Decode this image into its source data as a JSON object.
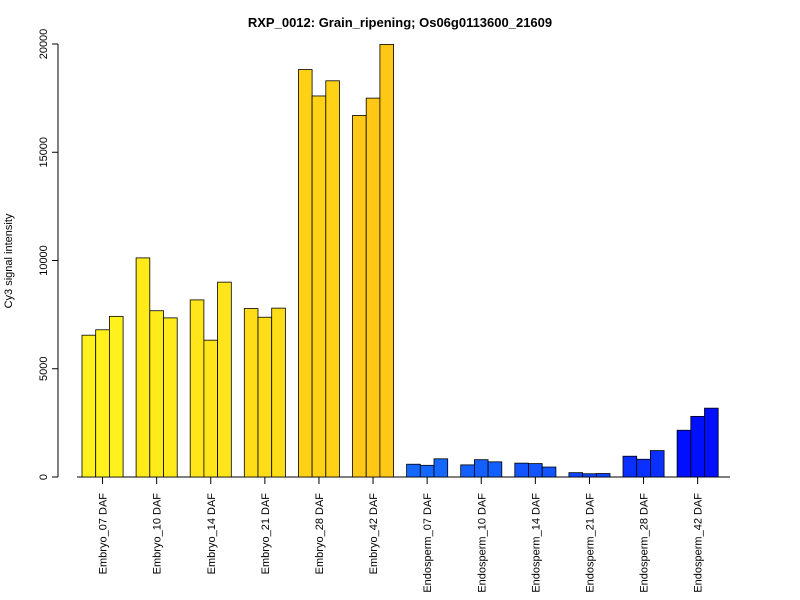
{
  "chart_data": {
    "type": "bar",
    "title": "RXP_0012: Grain_ripening; Os06g0113600_21609",
    "xlabel": "",
    "ylabel": "Cy3 signal intensity",
    "ylim": [
      0,
      20000
    ],
    "yticks": [
      0,
      5000,
      10000,
      15000,
      20000
    ],
    "grid": false,
    "legend": "none",
    "categories": [
      "Embryo_07 DAF",
      "Embryo_10 DAF",
      "Embryo_14 DAF",
      "Embryo_21 DAF",
      "Embryo_28 DAF",
      "Embryo_42 DAF",
      "Endosperm_07 DAF",
      "Endosperm_10 DAF",
      "Endosperm_14 DAF",
      "Endosperm_21 DAF",
      "Endosperm_28 DAF",
      "Endosperm_42 DAF"
    ],
    "groups": [
      {
        "category": "Embryo_07 DAF",
        "color": "#FFF21C",
        "values": [
          6550,
          6800,
          7420
        ]
      },
      {
        "category": "Embryo_10 DAF",
        "color": "#FFEA1A",
        "values": [
          10120,
          7680,
          7350
        ]
      },
      {
        "category": "Embryo_14 DAF",
        "color": "#FFE51A",
        "values": [
          8180,
          6320,
          9000
        ]
      },
      {
        "category": "Embryo_21 DAF",
        "color": "#FFDC18",
        "values": [
          7780,
          7380,
          7800
        ]
      },
      {
        "category": "Embryo_28 DAF",
        "color": "#FFD216",
        "values": [
          18820,
          17600,
          18300
        ]
      },
      {
        "category": "Embryo_42 DAF",
        "color": "#FFC816",
        "values": [
          16700,
          17500,
          19980
        ]
      },
      {
        "category": "Endosperm_07 DAF",
        "color": "#1468FF",
        "values": [
          590,
          540,
          840
        ]
      },
      {
        "category": "Endosperm_10 DAF",
        "color": "#1460FF",
        "values": [
          560,
          800,
          700
        ]
      },
      {
        "category": "Endosperm_14 DAF",
        "color": "#1254FF",
        "values": [
          640,
          620,
          460
        ]
      },
      {
        "category": "Endosperm_21 DAF",
        "color": "#0F44FF",
        "values": [
          200,
          150,
          160
        ]
      },
      {
        "category": "Endosperm_28 DAF",
        "color": "#0A30FF",
        "values": [
          960,
          820,
          1220
        ]
      },
      {
        "category": "Endosperm_42 DAF",
        "color": "#0010FF",
        "values": [
          2160,
          2800,
          3180
        ]
      }
    ]
  }
}
